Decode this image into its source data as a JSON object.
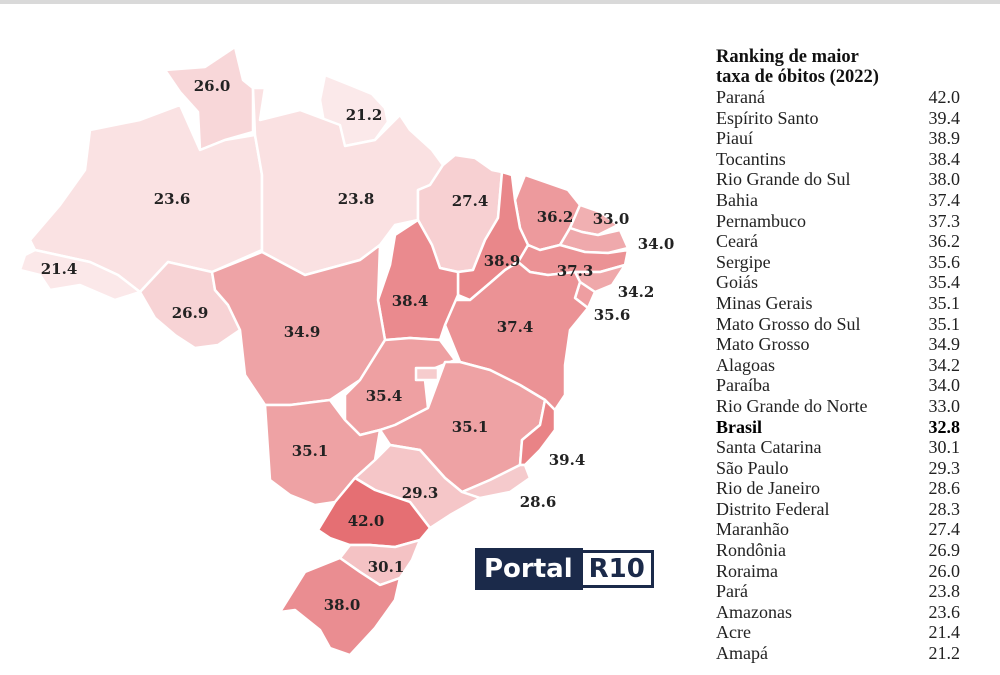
{
  "title": "Ranking  de maior taxa de óbitos (2022)",
  "title_lines": [
    "Ranking  de maior",
    "taxa de óbitos (2022)"
  ],
  "ranking": [
    {
      "name": "Paraná",
      "value": "42.0"
    },
    {
      "name": "Espírito Santo",
      "value": "39.4"
    },
    {
      "name": "Piauí",
      "value": "38.9"
    },
    {
      "name": "Tocantins",
      "value": "38.4"
    },
    {
      "name": "Rio Grande do Sul",
      "value": "38.0"
    },
    {
      "name": "Bahia",
      "value": "37.4"
    },
    {
      "name": "Pernambuco",
      "value": "37.3"
    },
    {
      "name": "Ceará",
      "value": "36.2"
    },
    {
      "name": "Sergipe",
      "value": "35.6"
    },
    {
      "name": "Goiás",
      "value": "35.4"
    },
    {
      "name": "Minas Gerais",
      "value": "35.1"
    },
    {
      "name": "Mato Grosso do Sul",
      "value": "35.1"
    },
    {
      "name": "Mato Grosso",
      "value": "34.9"
    },
    {
      "name": "Alagoas",
      "value": "34.2"
    },
    {
      "name": "Paraíba",
      "value": "34.0"
    },
    {
      "name": "Rio Grande do Norte",
      "value": "33.0"
    },
    {
      "name": "Brasil",
      "value": "32.8",
      "highlight": true
    },
    {
      "name": "Santa Catarina",
      "value": "30.1"
    },
    {
      "name": "São Paulo",
      "value": "29.3"
    },
    {
      "name": "Rio de Janeiro",
      "value": "28.6"
    },
    {
      "name": "Distrito Federal",
      "value": "28.3"
    },
    {
      "name": "Maranhão",
      "value": "27.4"
    },
    {
      "name": "Rondônia",
      "value": "26.9"
    },
    {
      "name": "Roraima",
      "value": "26.0"
    },
    {
      "name": "Pará",
      "value": "23.8"
    },
    {
      "name": "Amazonas",
      "value": "23.6"
    },
    {
      "name": "Acre",
      "value": "21.4"
    },
    {
      "name": "Amapá",
      "value": "21.2"
    }
  ],
  "map_labels": {
    "RR": "26.0",
    "AP": "21.2",
    "AM": "23.6",
    "PA": "23.8",
    "MA": "27.4",
    "CE": "36.2",
    "RN": "33.0",
    "PB": "34.0",
    "PE": "37.3",
    "AL": "34.2",
    "SE": "35.6",
    "PI": "38.9",
    "BA": "37.4",
    "TO": "38.4",
    "AC": "21.4",
    "RO": "26.9",
    "MT": "34.9",
    "GO": "35.4",
    "MG": "35.1",
    "MS": "35.1",
    "ES": "39.4",
    "RJ": "28.6",
    "SP": "29.3",
    "PR": "42.0",
    "SC": "30.1",
    "RS": "38.0"
  },
  "logo": {
    "part1": "Portal",
    "part2": "R10"
  },
  "color_scale": {
    "low": "#fbe9ea",
    "high": "#e56f73",
    "min_value": 21.0,
    "max_value": 42.0
  }
}
